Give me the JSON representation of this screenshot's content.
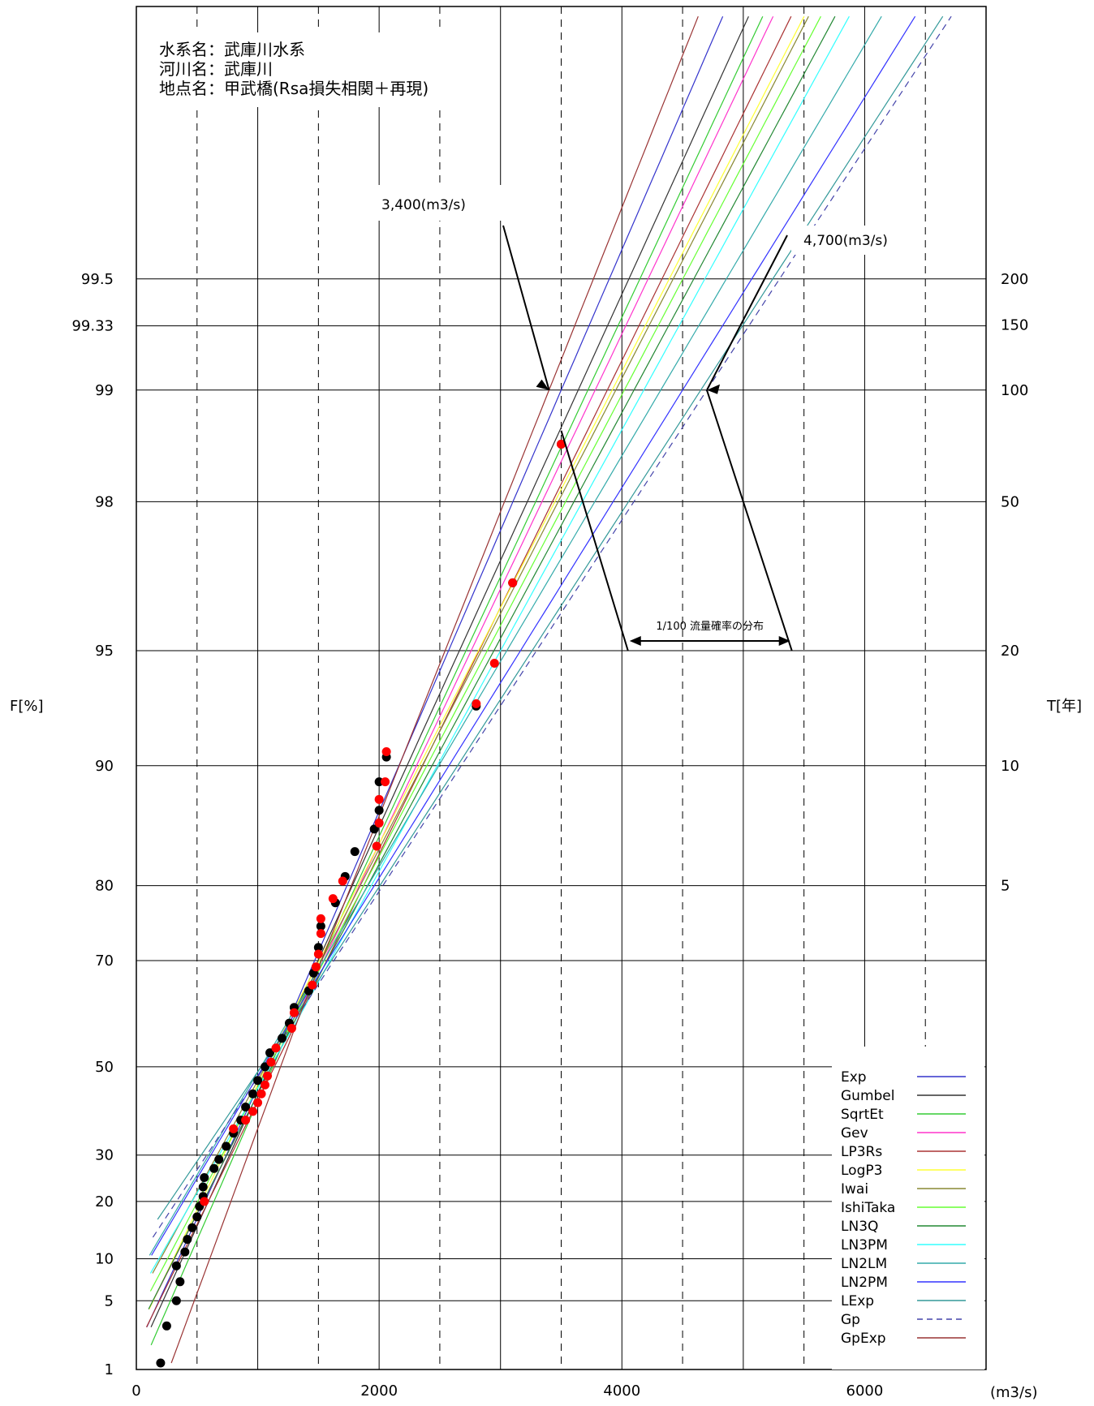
{
  "chart_data": {
    "type": "scatter",
    "title_lines": [
      "水系名：武庫川水系",
      "河川名：武庫川",
      "地点名：甲武橋(Rsa損失相関＋再現)"
    ],
    "xlabel": "(m3/s)",
    "ylabel_left": "F[%]",
    "ylabel_right": "T[年]",
    "xlim": [
      0,
      7000
    ],
    "x_ticks": [
      0,
      2000,
      4000,
      6000
    ],
    "x_dashed": [
      500,
      1500,
      2500,
      3500,
      4500,
      5500,
      6500
    ],
    "x_solid": [
      1000,
      2000,
      3000,
      4000,
      5000,
      6000
    ],
    "y_left_ticks": [
      "99.5",
      "99.33",
      "99",
      "98",
      "95",
      "90",
      "80",
      "70",
      "50",
      "30",
      "20",
      "10",
      "5",
      "1"
    ],
    "y_right_ticks": [
      "200",
      "150",
      "100",
      "50",
      "20",
      "10",
      "5"
    ],
    "annotations": {
      "low_estimate": "3,400(m3/s)",
      "high_estimate": "4,700(m3/s)",
      "range_label": "1/100 流量確率の分布"
    },
    "legend": {
      "position": "bottom-right",
      "entries": [
        {
          "name": "Exp",
          "color": "#3333cc",
          "dash": false
        },
        {
          "name": "Gumbel",
          "color": "#333333",
          "dash": false
        },
        {
          "name": "SqrtEt",
          "color": "#33cc33",
          "dash": false
        },
        {
          "name": "Gev",
          "color": "#ff33cc",
          "dash": false
        },
        {
          "name": "LP3Rs",
          "color": "#aa3333",
          "dash": false
        },
        {
          "name": "LogP3",
          "color": "#ffff33",
          "dash": false
        },
        {
          "name": "Iwai",
          "color": "#888833",
          "dash": false
        },
        {
          "name": "IshiTaka",
          "color": "#66ff33",
          "dash": false
        },
        {
          "name": "LN3Q",
          "color": "#228833",
          "dash": false
        },
        {
          "name": "LN3PM",
          "color": "#33ffff",
          "dash": false
        },
        {
          "name": "LN2LM",
          "color": "#33aaaa",
          "dash": false
        },
        {
          "name": "LN2PM",
          "color": "#3333ff",
          "dash": false
        },
        {
          "name": "LExp",
          "color": "#339999",
          "dash": false
        },
        {
          "name": "Gp",
          "color": "#4444aa",
          "dash": true
        },
        {
          "name": "GpExp",
          "color": "#993333",
          "dash": false
        }
      ]
    },
    "series_q100": [
      3500,
      3640,
      3720,
      3780,
      3880,
      3920,
      3950,
      4020,
      4100,
      4180,
      4320,
      4500,
      4650,
      4700,
      3400
    ],
    "observed_black": [
      [
        200,
        1.2
      ],
      [
        250,
        3
      ],
      [
        330,
        5
      ],
      [
        360,
        7
      ],
      [
        330,
        9
      ],
      [
        400,
        11
      ],
      [
        420,
        13
      ],
      [
        460,
        15
      ],
      [
        500,
        17
      ],
      [
        520,
        19
      ],
      [
        550,
        21
      ],
      [
        550,
        23
      ],
      [
        560,
        25
      ],
      [
        640,
        27
      ],
      [
        680,
        29
      ],
      [
        740,
        32
      ],
      [
        800,
        35
      ],
      [
        860,
        38
      ],
      [
        900,
        41
      ],
      [
        960,
        44
      ],
      [
        1000,
        47
      ],
      [
        1060,
        50
      ],
      [
        1100,
        53
      ],
      [
        1200,
        56
      ],
      [
        1260,
        59
      ],
      [
        1300,
        62
      ],
      [
        1420,
        65
      ],
      [
        1460,
        68
      ],
      [
        1500,
        72
      ],
      [
        1520,
        75
      ],
      [
        1640,
        78
      ],
      [
        1720,
        81
      ],
      [
        1800,
        83.5
      ],
      [
        1960,
        85.5
      ],
      [
        2000,
        87
      ],
      [
        2000,
        89
      ],
      [
        2060,
        90.5
      ],
      [
        2800,
        93
      ],
      [
        3100,
        96.7
      ],
      [
        3500,
        98.6
      ]
    ],
    "observed_red": [
      [
        560,
        20
      ],
      [
        800,
        36
      ],
      [
        900,
        38
      ],
      [
        960,
        40
      ],
      [
        1000,
        42
      ],
      [
        1030,
        44
      ],
      [
        1060,
        46
      ],
      [
        1080,
        48
      ],
      [
        1110,
        51
      ],
      [
        1150,
        54
      ],
      [
        1280,
        58
      ],
      [
        1300,
        61
      ],
      [
        1450,
        66
      ],
      [
        1480,
        69
      ],
      [
        1500,
        71
      ],
      [
        1520,
        74
      ],
      [
        1520,
        76
      ],
      [
        1620,
        78.5
      ],
      [
        1700,
        80.5
      ],
      [
        1980,
        84
      ],
      [
        2000,
        86
      ],
      [
        2000,
        87.8
      ],
      [
        2050,
        89
      ],
      [
        2060,
        90.8
      ],
      [
        2800,
        93.1
      ],
      [
        2950,
        94.6
      ],
      [
        3100,
        96.7
      ],
      [
        3500,
        98.6
      ]
    ]
  }
}
